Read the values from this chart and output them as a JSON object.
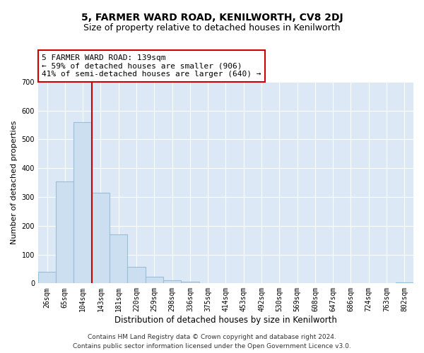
{
  "title": "5, FARMER WARD ROAD, KENILWORTH, CV8 2DJ",
  "subtitle": "Size of property relative to detached houses in Kenilworth",
  "xlabel": "Distribution of detached houses by size in Kenilworth",
  "ylabel": "Number of detached properties",
  "bar_labels": [
    "26sqm",
    "65sqm",
    "104sqm",
    "143sqm",
    "181sqm",
    "220sqm",
    "259sqm",
    "298sqm",
    "336sqm",
    "375sqm",
    "414sqm",
    "453sqm",
    "492sqm",
    "530sqm",
    "569sqm",
    "608sqm",
    "647sqm",
    "686sqm",
    "724sqm",
    "763sqm",
    "802sqm"
  ],
  "bar_values": [
    40,
    355,
    560,
    315,
    170,
    58,
    22,
    11,
    5,
    2,
    1,
    0,
    0,
    0,
    0,
    0,
    0,
    0,
    0,
    0,
    3
  ],
  "bar_color": "#ccdff0",
  "bar_edge_color": "#9abdd8",
  "red_line_color": "#cc0000",
  "annotation_text": "5 FARMER WARD ROAD: 139sqm\n← 59% of detached houses are smaller (906)\n41% of semi-detached houses are larger (640) →",
  "annotation_box_facecolor": "#ffffff",
  "annotation_box_edgecolor": "#cc0000",
  "ylim": [
    0,
    700
  ],
  "yticks": [
    0,
    100,
    200,
    300,
    400,
    500,
    600,
    700
  ],
  "plot_bg_color": "#dce8f5",
  "grid_color": "#ffffff",
  "footer1": "Contains HM Land Registry data © Crown copyright and database right 2024.",
  "footer2": "Contains public sector information licensed under the Open Government Licence v3.0.",
  "title_fontsize": 10,
  "subtitle_fontsize": 9,
  "xlabel_fontsize": 8.5,
  "ylabel_fontsize": 8,
  "tick_fontsize": 7,
  "annotation_fontsize": 8,
  "footer_fontsize": 6.5
}
